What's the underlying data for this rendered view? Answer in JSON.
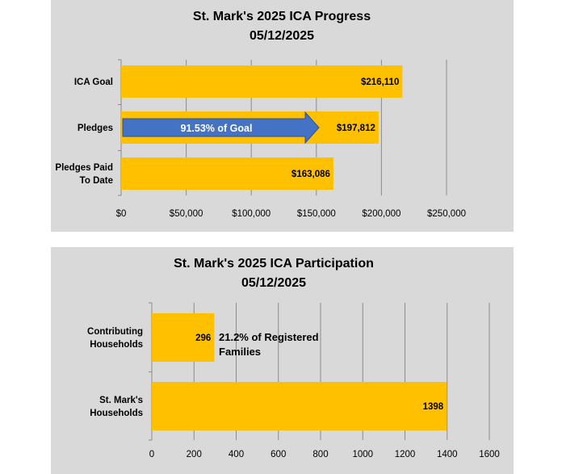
{
  "chart_data": [
    {
      "type": "bar",
      "orientation": "horizontal",
      "title": [
        "St. Mark's 2025 ICA Progress",
        "05/12/2025"
      ],
      "categories": [
        [
          "ICA Goal"
        ],
        [
          "Pledges"
        ],
        [
          "Pledges Paid",
          "To Date"
        ]
      ],
      "values": [
        216110,
        197812,
        163086
      ],
      "data_labels": [
        "$216,110",
        "$197,812",
        "$163,086"
      ],
      "xlim": [
        0,
        250000
      ],
      "x_ticks": [
        0,
        50000,
        100000,
        150000,
        200000,
        250000
      ],
      "x_tick_labels": [
        "$0",
        "$50,000",
        "$100,000",
        "$150,000",
        "$200,000",
        "$250,000"
      ],
      "grid": true,
      "bar_color": "#ffc000",
      "background": "#d9d9d9",
      "annotation": {
        "text": "91.53%  of Goal",
        "category_index": 1,
        "color": "#4472c4"
      }
    },
    {
      "type": "bar",
      "orientation": "horizontal",
      "title": [
        "St. Mark's 2025 ICA Participation",
        "05/12/2025"
      ],
      "categories": [
        [
          "Contributing",
          "Households"
        ],
        [
          "St. Mark's",
          "Households"
        ]
      ],
      "values": [
        296,
        1398
      ],
      "data_labels": [
        "296",
        "1398"
      ],
      "xlim": [
        0,
        1600
      ],
      "x_ticks": [
        0,
        200,
        400,
        600,
        800,
        1000,
        1200,
        1400,
        1600
      ],
      "x_tick_labels": [
        "0",
        "200",
        "400",
        "600",
        "800",
        "1000",
        "1200",
        "1400",
        "1600"
      ],
      "grid": true,
      "bar_color": "#ffc000",
      "background": "#d9d9d9",
      "annotation": {
        "text": [
          "21.2% of Registered",
          "Families"
        ],
        "category_index": 0
      }
    }
  ]
}
